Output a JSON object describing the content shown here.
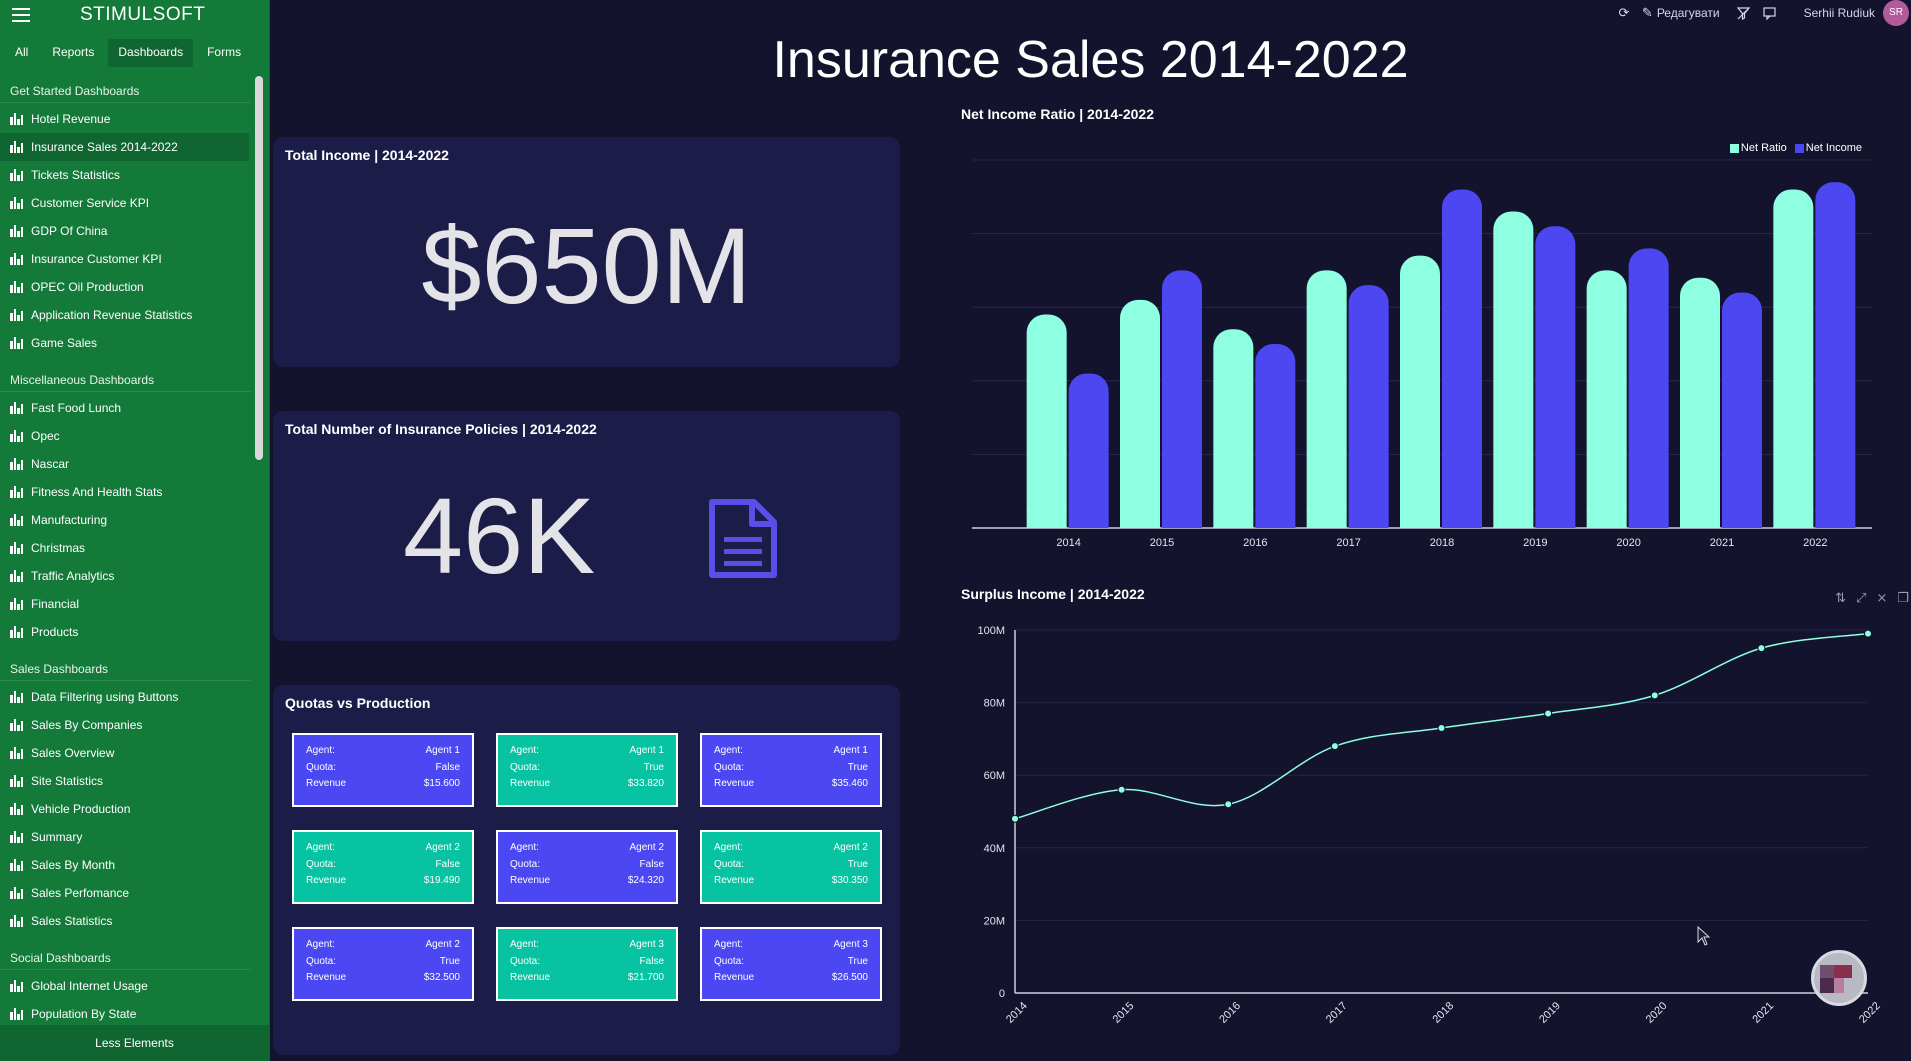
{
  "sidebar": {
    "brand": "STIMULSOFT",
    "tabs": [
      "All",
      "Reports",
      "Dashboards",
      "Forms"
    ],
    "active_tab": "Dashboards",
    "groups": [
      {
        "title": "Get Started Dashboards",
        "items": [
          "Hotel Revenue",
          "Insurance Sales 2014-2022",
          "Tickets Statistics",
          "Customer Service KPI",
          "GDP Of China",
          "Insurance Customer KPI",
          "OPEC Oil Production",
          "Application Revenue Statistics",
          "Game Sales"
        ]
      },
      {
        "title": "Miscellaneous Dashboards",
        "items": [
          "Fast Food Lunch",
          "Opec",
          "Nascar",
          "Fitness And Health Stats",
          "Manufacturing",
          "Christmas",
          "Traffic Analytics",
          "Financial",
          "Products"
        ]
      },
      {
        "title": "Sales Dashboards",
        "items": [
          "Data Filtering using Buttons",
          "Sales By Companies",
          "Sales Overview",
          "Site Statistics",
          "Vehicle Production",
          "Summary",
          "Sales By Month",
          "Sales Perfomance",
          "Sales Statistics"
        ]
      },
      {
        "title": "Social Dashboards",
        "items": [
          "Global Internet Usage",
          "Population By State"
        ]
      }
    ],
    "active_item": "Insurance Sales 2014-2022",
    "footer": "Less Elements"
  },
  "topbar": {
    "edit_label": "Редагувати",
    "user_name": "Serhii Rudiuk",
    "avatar_initials": "SR",
    "icons": [
      "refresh-icon",
      "edit-icon",
      "filter-off-icon",
      "comment-icon"
    ]
  },
  "dashboard": {
    "title": "Insurance Sales 2014-2022",
    "income": {
      "title": "Total Income | 2014-2022",
      "value": "$650M"
    },
    "policies": {
      "title": "Total Number of Insurance Policies  | 2014-2022",
      "value": "46K"
    },
    "quotas": {
      "title": "Quotas vs Production",
      "labels": {
        "agent": "Agent:",
        "quota": "Quota:",
        "revenue": "Revenue"
      },
      "cells": [
        {
          "agent": "Agent 1",
          "quota": "False",
          "revenue": "$15.600",
          "color": "blue"
        },
        {
          "agent": "Agent 1",
          "quota": "True",
          "revenue": "$33.820",
          "color": "green"
        },
        {
          "agent": "Agent 1",
          "quota": "True",
          "revenue": "$35.460",
          "color": "blue"
        },
        {
          "agent": "Agent 2",
          "quota": "False",
          "revenue": "$19.490",
          "color": "green"
        },
        {
          "agent": "Agent 2",
          "quota": "False",
          "revenue": "$24.320",
          "color": "blue"
        },
        {
          "agent": "Agent 2",
          "quota": "True",
          "revenue": "$30.350",
          "color": "green"
        },
        {
          "agent": "Agent 2",
          "quota": "True",
          "revenue": "$32.500",
          "color": "blue"
        },
        {
          "agent": "Agent 3",
          "quota": "False",
          "revenue": "$21.700",
          "color": "green"
        },
        {
          "agent": "Agent 3",
          "quota": "True",
          "revenue": "$26.500",
          "color": "blue"
        }
      ]
    }
  },
  "colors": {
    "ratio": "#8effe0",
    "income": "#4d47f2",
    "line": "#8effe0",
    "page_bg": "#13132d",
    "card_bg": "#1c1c48",
    "sidebar_bg": "#137a3a"
  },
  "chart_data": [
    {
      "type": "bar",
      "title": "Net Income Ratio | 2014-2022",
      "categories": [
        "2014",
        "2015",
        "2016",
        "2017",
        "2018",
        "2019",
        "2020",
        "2021",
        "2022"
      ],
      "series": [
        {
          "name": "Net Ratio",
          "values": [
            58,
            62,
            54,
            70,
            74,
            86,
            70,
            68,
            92
          ]
        },
        {
          "name": "Net Income",
          "values": [
            42,
            70,
            50,
            66,
            92,
            82,
            76,
            64,
            94
          ]
        }
      ],
      "ylim": [
        0,
        100
      ],
      "legend": "top-right",
      "grid": true
    },
    {
      "type": "line",
      "title": "Surplus Income | 2014-2022",
      "x": [
        "2014",
        "2015",
        "2016",
        "2017",
        "2018",
        "2019",
        "2020",
        "2021",
        "2022"
      ],
      "y": [
        48,
        56,
        52,
        68,
        73,
        77,
        82,
        95,
        99
      ],
      "y_tick_labels": [
        "0",
        "20M",
        "40M",
        "60M",
        "80M",
        "100M"
      ],
      "ylim": [
        0,
        100
      ],
      "grid": true,
      "smooth": true
    }
  ]
}
